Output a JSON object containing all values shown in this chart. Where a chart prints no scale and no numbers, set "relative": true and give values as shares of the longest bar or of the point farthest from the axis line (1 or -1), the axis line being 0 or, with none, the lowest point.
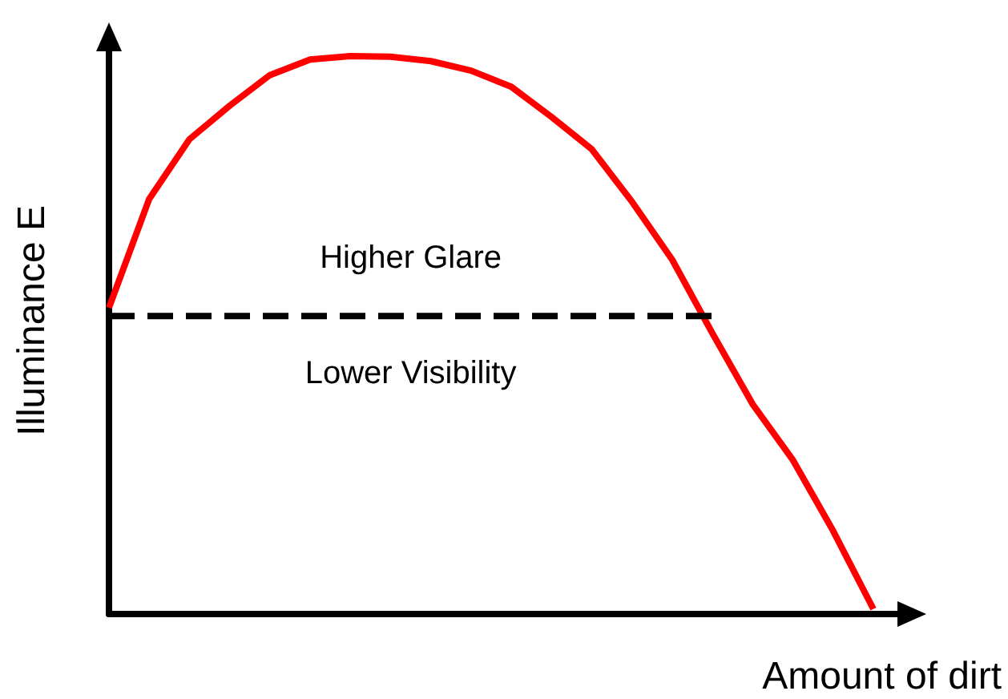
{
  "chart_data": {
    "type": "line",
    "relative": true,
    "xlabel": "Amount of dirt",
    "ylabel": "Illuminance E",
    "grid": false,
    "marker": "none",
    "categories": [
      null,
      null,
      null,
      null,
      null,
      null,
      null,
      null,
      null,
      null,
      null,
      null,
      null,
      null,
      null,
      null,
      null,
      null,
      null,
      null
    ],
    "series": [
      {
        "color": "#ff0000",
        "line_style": "solid",
        "values": [
          0.549,
          0.744,
          0.851,
          0.911,
          0.966,
          0.994,
          1,
          0.999,
          0.991,
          0.974,
          0.945,
          0.891,
          0.833,
          0.739,
          0.635,
          0.503,
          0.376,
          0.276,
          0.149,
          0.009
        ]
      },
      {
        "color": "#000000",
        "line_style": "dashed",
        "values": [
          0.534,
          0.534,
          0.534,
          0.534,
          0.534,
          0.534,
          0.534,
          0.534,
          0.534,
          0.534,
          0.534,
          0.534,
          0.534,
          0.534,
          0.534,
          0.534,
          null,
          null,
          null,
          null
        ]
      }
    ],
    "annotations": [
      "Higher Glare",
      "Lower Visibility"
    ]
  }
}
